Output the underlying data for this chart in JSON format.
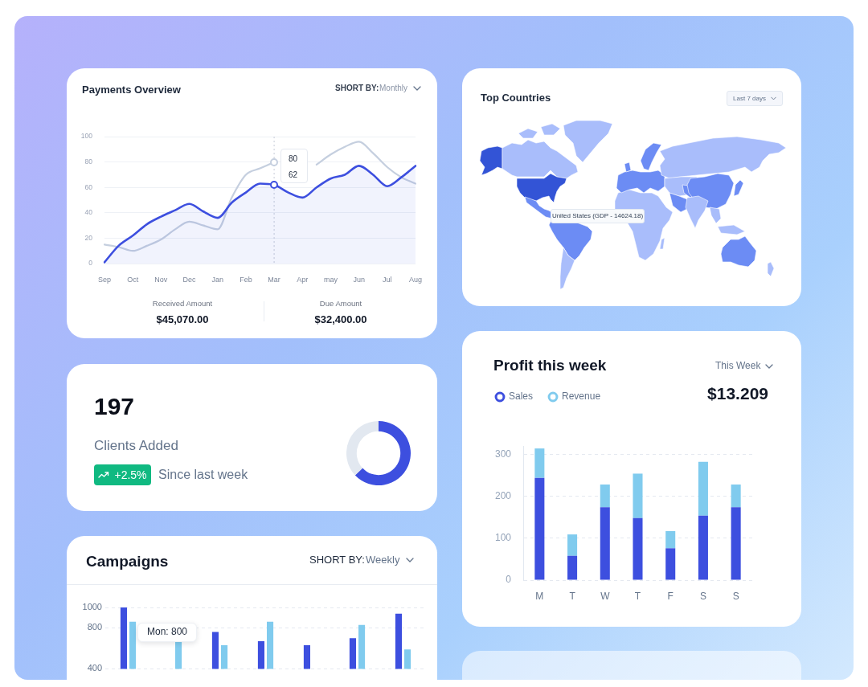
{
  "chart_data": [
    {
      "type": "line",
      "title": "Payments Overview",
      "categories": [
        "Sep",
        null,
        "Oct",
        null,
        "Nov",
        null,
        "Dec",
        null,
        "Jan",
        null,
        "Feb",
        null,
        "Mar",
        null,
        "Apr",
        null,
        "may",
        null,
        "Jun",
        null,
        "Jul",
        null,
        "Aug"
      ],
      "ylim": [
        0,
        100
      ],
      "yticks": [
        0,
        20,
        40,
        60,
        80,
        100
      ],
      "series": [
        {
          "type": "area",
          "color": "#3d4fdf",
          "values": [
            1,
            14,
            22,
            31,
            37,
            42,
            47,
            41,
            36,
            48,
            56,
            63,
            62,
            56,
            52,
            60,
            67,
            70,
            77,
            70,
            61,
            68,
            77
          ]
        },
        {
          "type": "line",
          "color": "#c5cfdf",
          "values": [
            15,
            13,
            10,
            14,
            19,
            27,
            33,
            30,
            27,
            52,
            70,
            75,
            80,
            null,
            null,
            78,
            86,
            92,
            96,
            87,
            76,
            68,
            63
          ]
        }
      ],
      "grid": "y",
      "ref_lines": [
        {
          "axis": "x",
          "value": "Mar",
          "line_style": "dotted",
          "color": "#c3c9d6"
        }
      ],
      "annotations": [
        "SHORT BY:",
        "Monthly",
        "80",
        "62",
        "Received Amount",
        "$45,070.00",
        "Due Amount",
        "$32,400.00"
      ]
    },
    {
      "type": "other",
      "title": "Top Countries",
      "annotations": [
        "Last 7 days",
        "United States (GDP - 14624.18)"
      ]
    },
    {
      "type": "donut",
      "categories": [
        null,
        null
      ],
      "values": [
        63,
        37
      ],
      "colors": [
        "#3d4fdf",
        "#e2e8f0"
      ],
      "annotations": [
        "197",
        "Clients Added",
        "+2.5%",
        "Since last week"
      ]
    },
    {
      "type": "bar",
      "title": "Profit this week",
      "categories": [
        "M",
        "T",
        "W",
        "T",
        "F",
        "S",
        "S"
      ],
      "stacked": true,
      "series": [
        {
          "name": "Sales",
          "color": "#3d4fdf",
          "values": [
            244,
            58,
            174,
            148,
            76,
            154,
            174
          ]
        },
        {
          "name": "Revenue",
          "color": "#80cbee",
          "values": [
            70,
            51,
            54,
            106,
            41,
            128,
            54
          ]
        }
      ],
      "ylim": [
        0,
        320
      ],
      "yticks": [
        0,
        100,
        200,
        300
      ],
      "grid": "y",
      "legend": "top left",
      "annotations": [
        "This Week",
        "$13.209"
      ]
    },
    {
      "type": "bar",
      "title": "Campaigns",
      "categories": [
        null,
        null,
        null,
        null,
        null,
        null,
        null
      ],
      "series": [
        {
          "color": "#3d4fdf",
          "values": [
            1000,
            null,
            760,
            670,
            630,
            700,
            940
          ]
        },
        {
          "color": "#80cbee",
          "values": [
            860,
            670,
            630,
            860,
            null,
            830,
            590
          ]
        }
      ],
      "ylim": [
        400,
        1000
      ],
      "yticks": [
        1000,
        800,
        400
      ],
      "grid": "y",
      "annotations": [
        "SHORT BY:",
        "Weekly",
        "Mon: 800"
      ]
    }
  ]
}
